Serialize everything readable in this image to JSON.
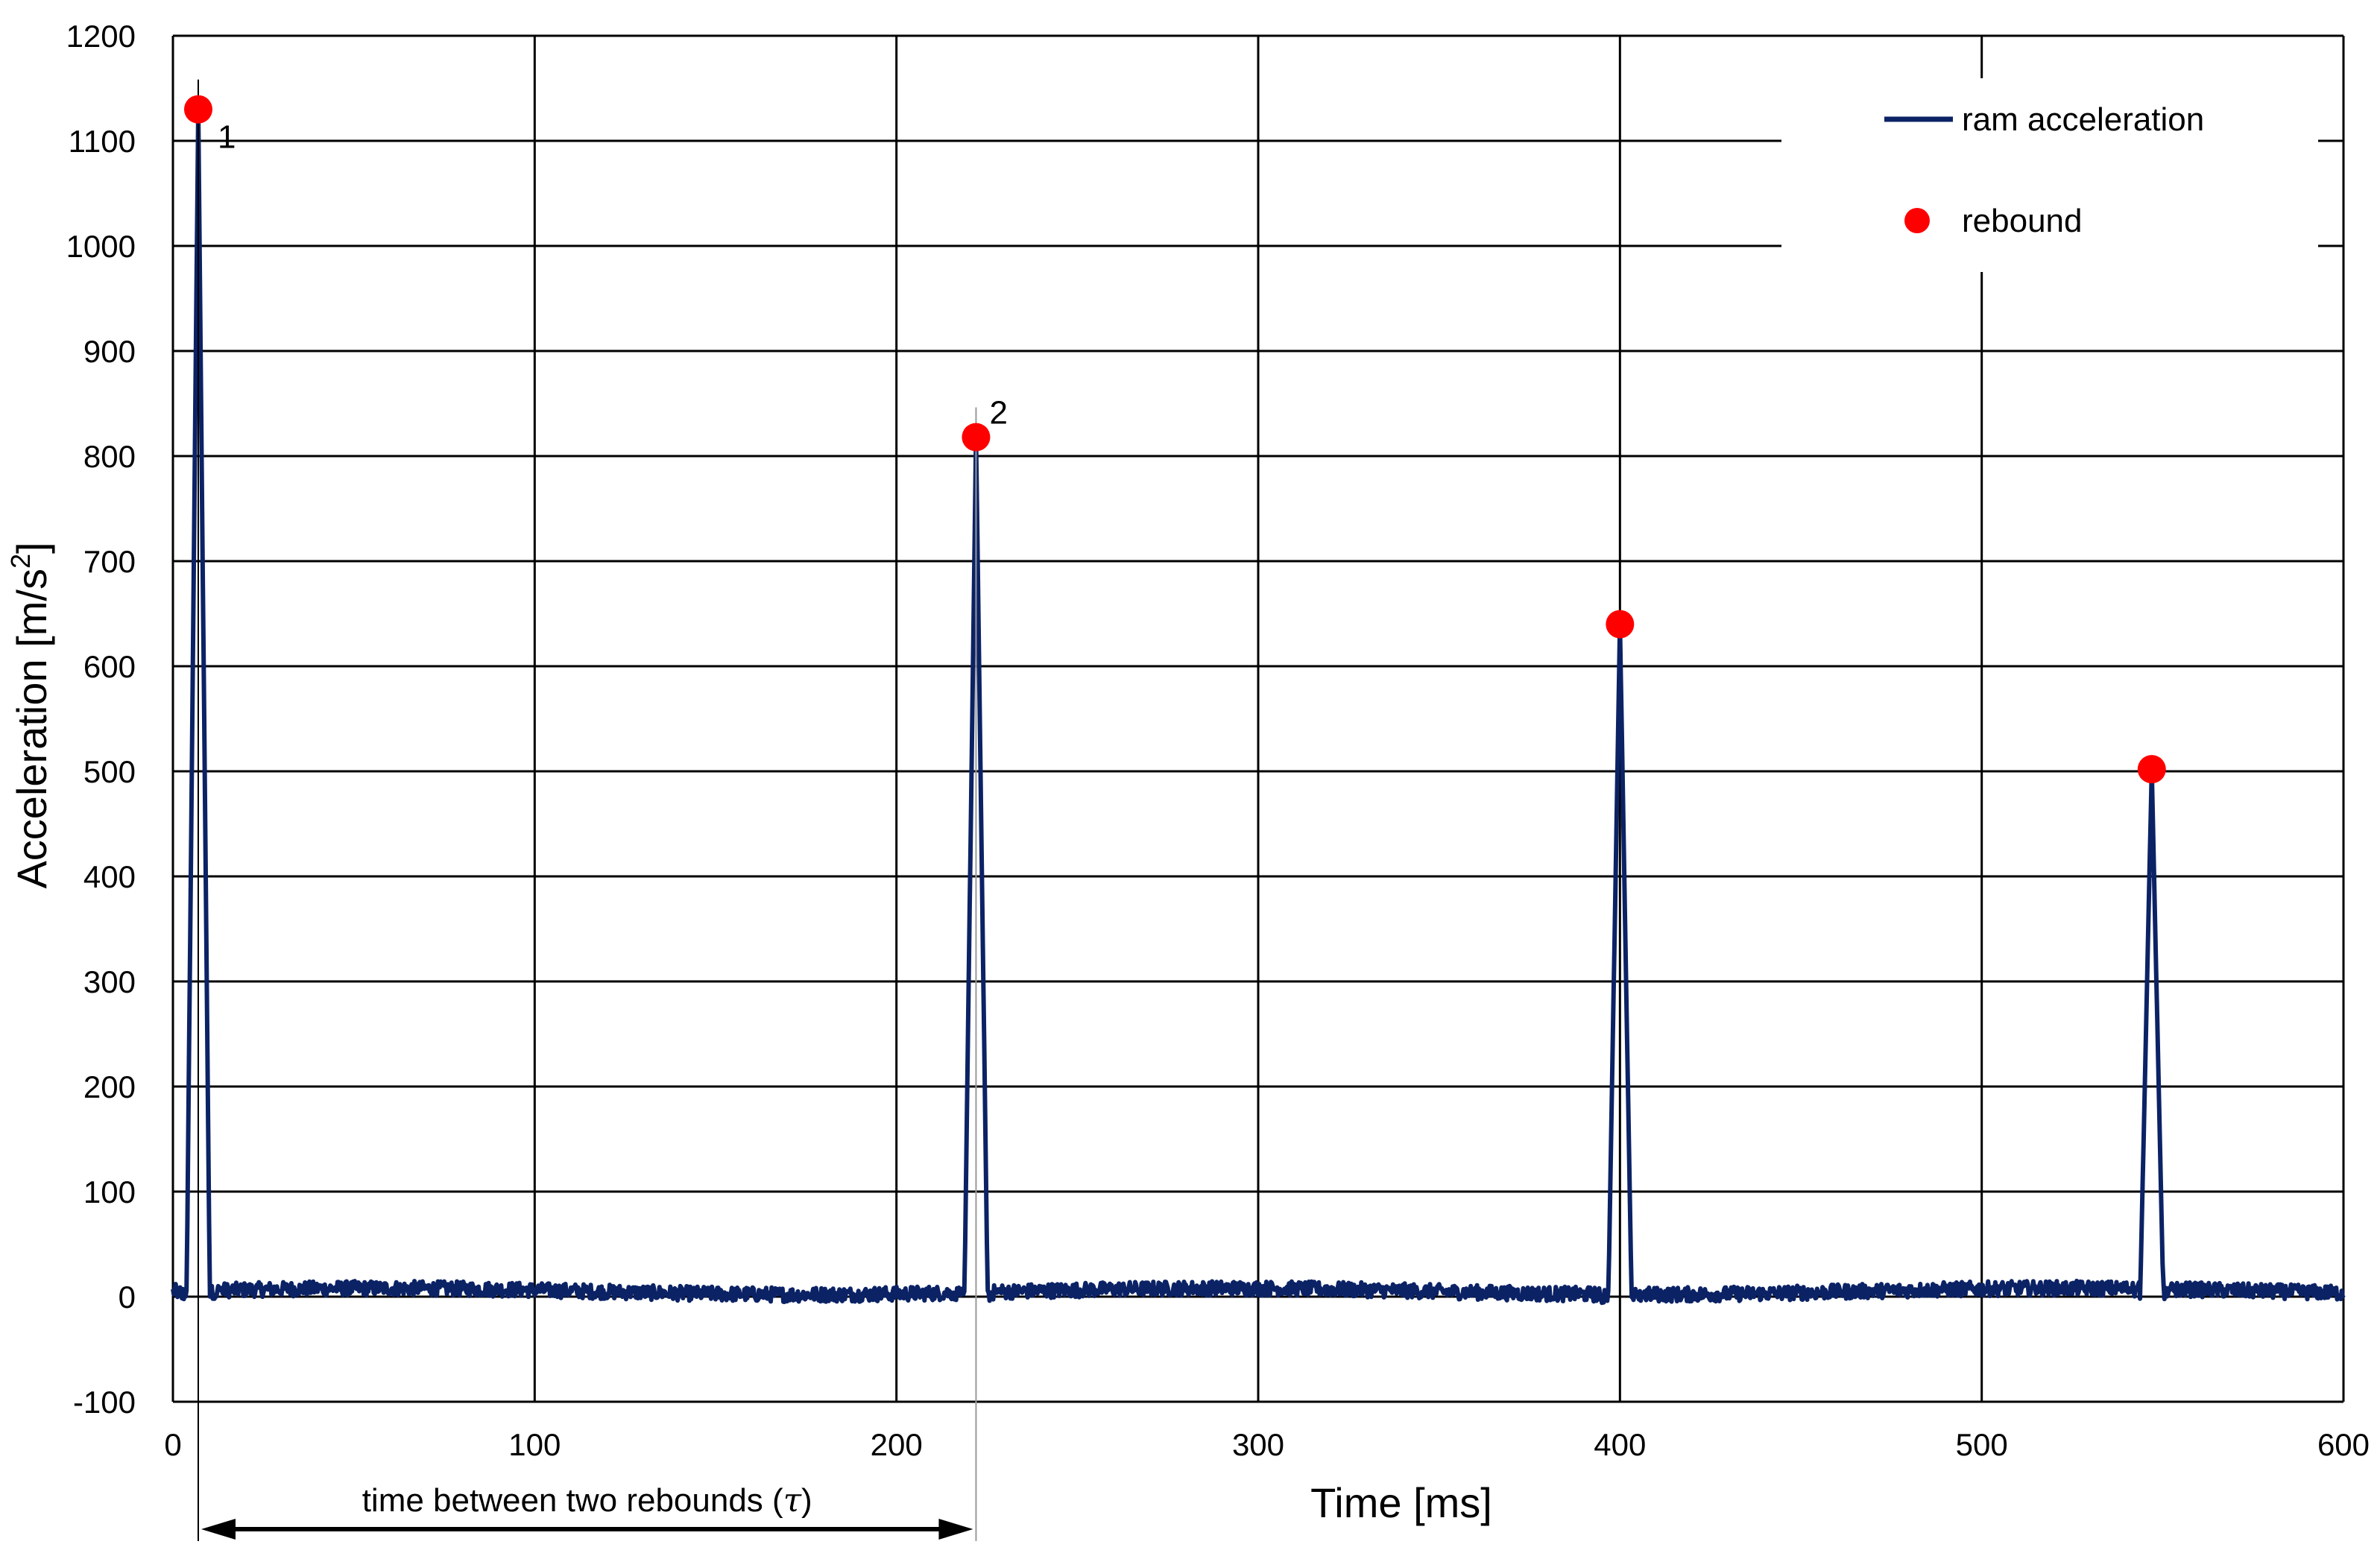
{
  "chart_data": {
    "type": "line",
    "xlabel": "Time [ms]",
    "ylabel_main": "Acceleration [m/s",
    "ylabel_sup": "2",
    "ylabel_close": "]",
    "xlim": [
      0,
      600
    ],
    "ylim": [
      -100,
      1200
    ],
    "xticks": [
      0,
      100,
      200,
      300,
      400,
      500,
      600
    ],
    "yticks": [
      -100,
      0,
      100,
      200,
      300,
      400,
      500,
      600,
      700,
      800,
      900,
      1000,
      1100,
      1200
    ],
    "grid": true,
    "legend_position": "top-right",
    "colors": {
      "line": "#0b2265",
      "marker": "#ff0000",
      "grid": "#000000"
    },
    "series": [
      {
        "name": "ram acceleration",
        "kind": "line",
        "baseline": 5,
        "peaks": [
          {
            "t": 7,
            "a": 1130
          },
          {
            "t": 222,
            "a": 818
          },
          {
            "t": 400,
            "a": 640
          },
          {
            "t": 547,
            "a": 502
          }
        ]
      },
      {
        "name": "rebound",
        "kind": "marker",
        "points": [
          {
            "t": 7,
            "a": 1130
          },
          {
            "t": 222,
            "a": 818
          },
          {
            "t": 400,
            "a": 640
          },
          {
            "t": 547,
            "a": 502
          }
        ]
      }
    ],
    "peak_labels": [
      {
        "text": "1",
        "t": 7,
        "a": 1130
      },
      {
        "text": "2",
        "t": 222,
        "a": 818
      }
    ],
    "annotation": {
      "text_main": "time between two rebounds (",
      "symbol": "τ",
      "text_close": ")",
      "from_t": 7,
      "to_t": 222
    }
  }
}
